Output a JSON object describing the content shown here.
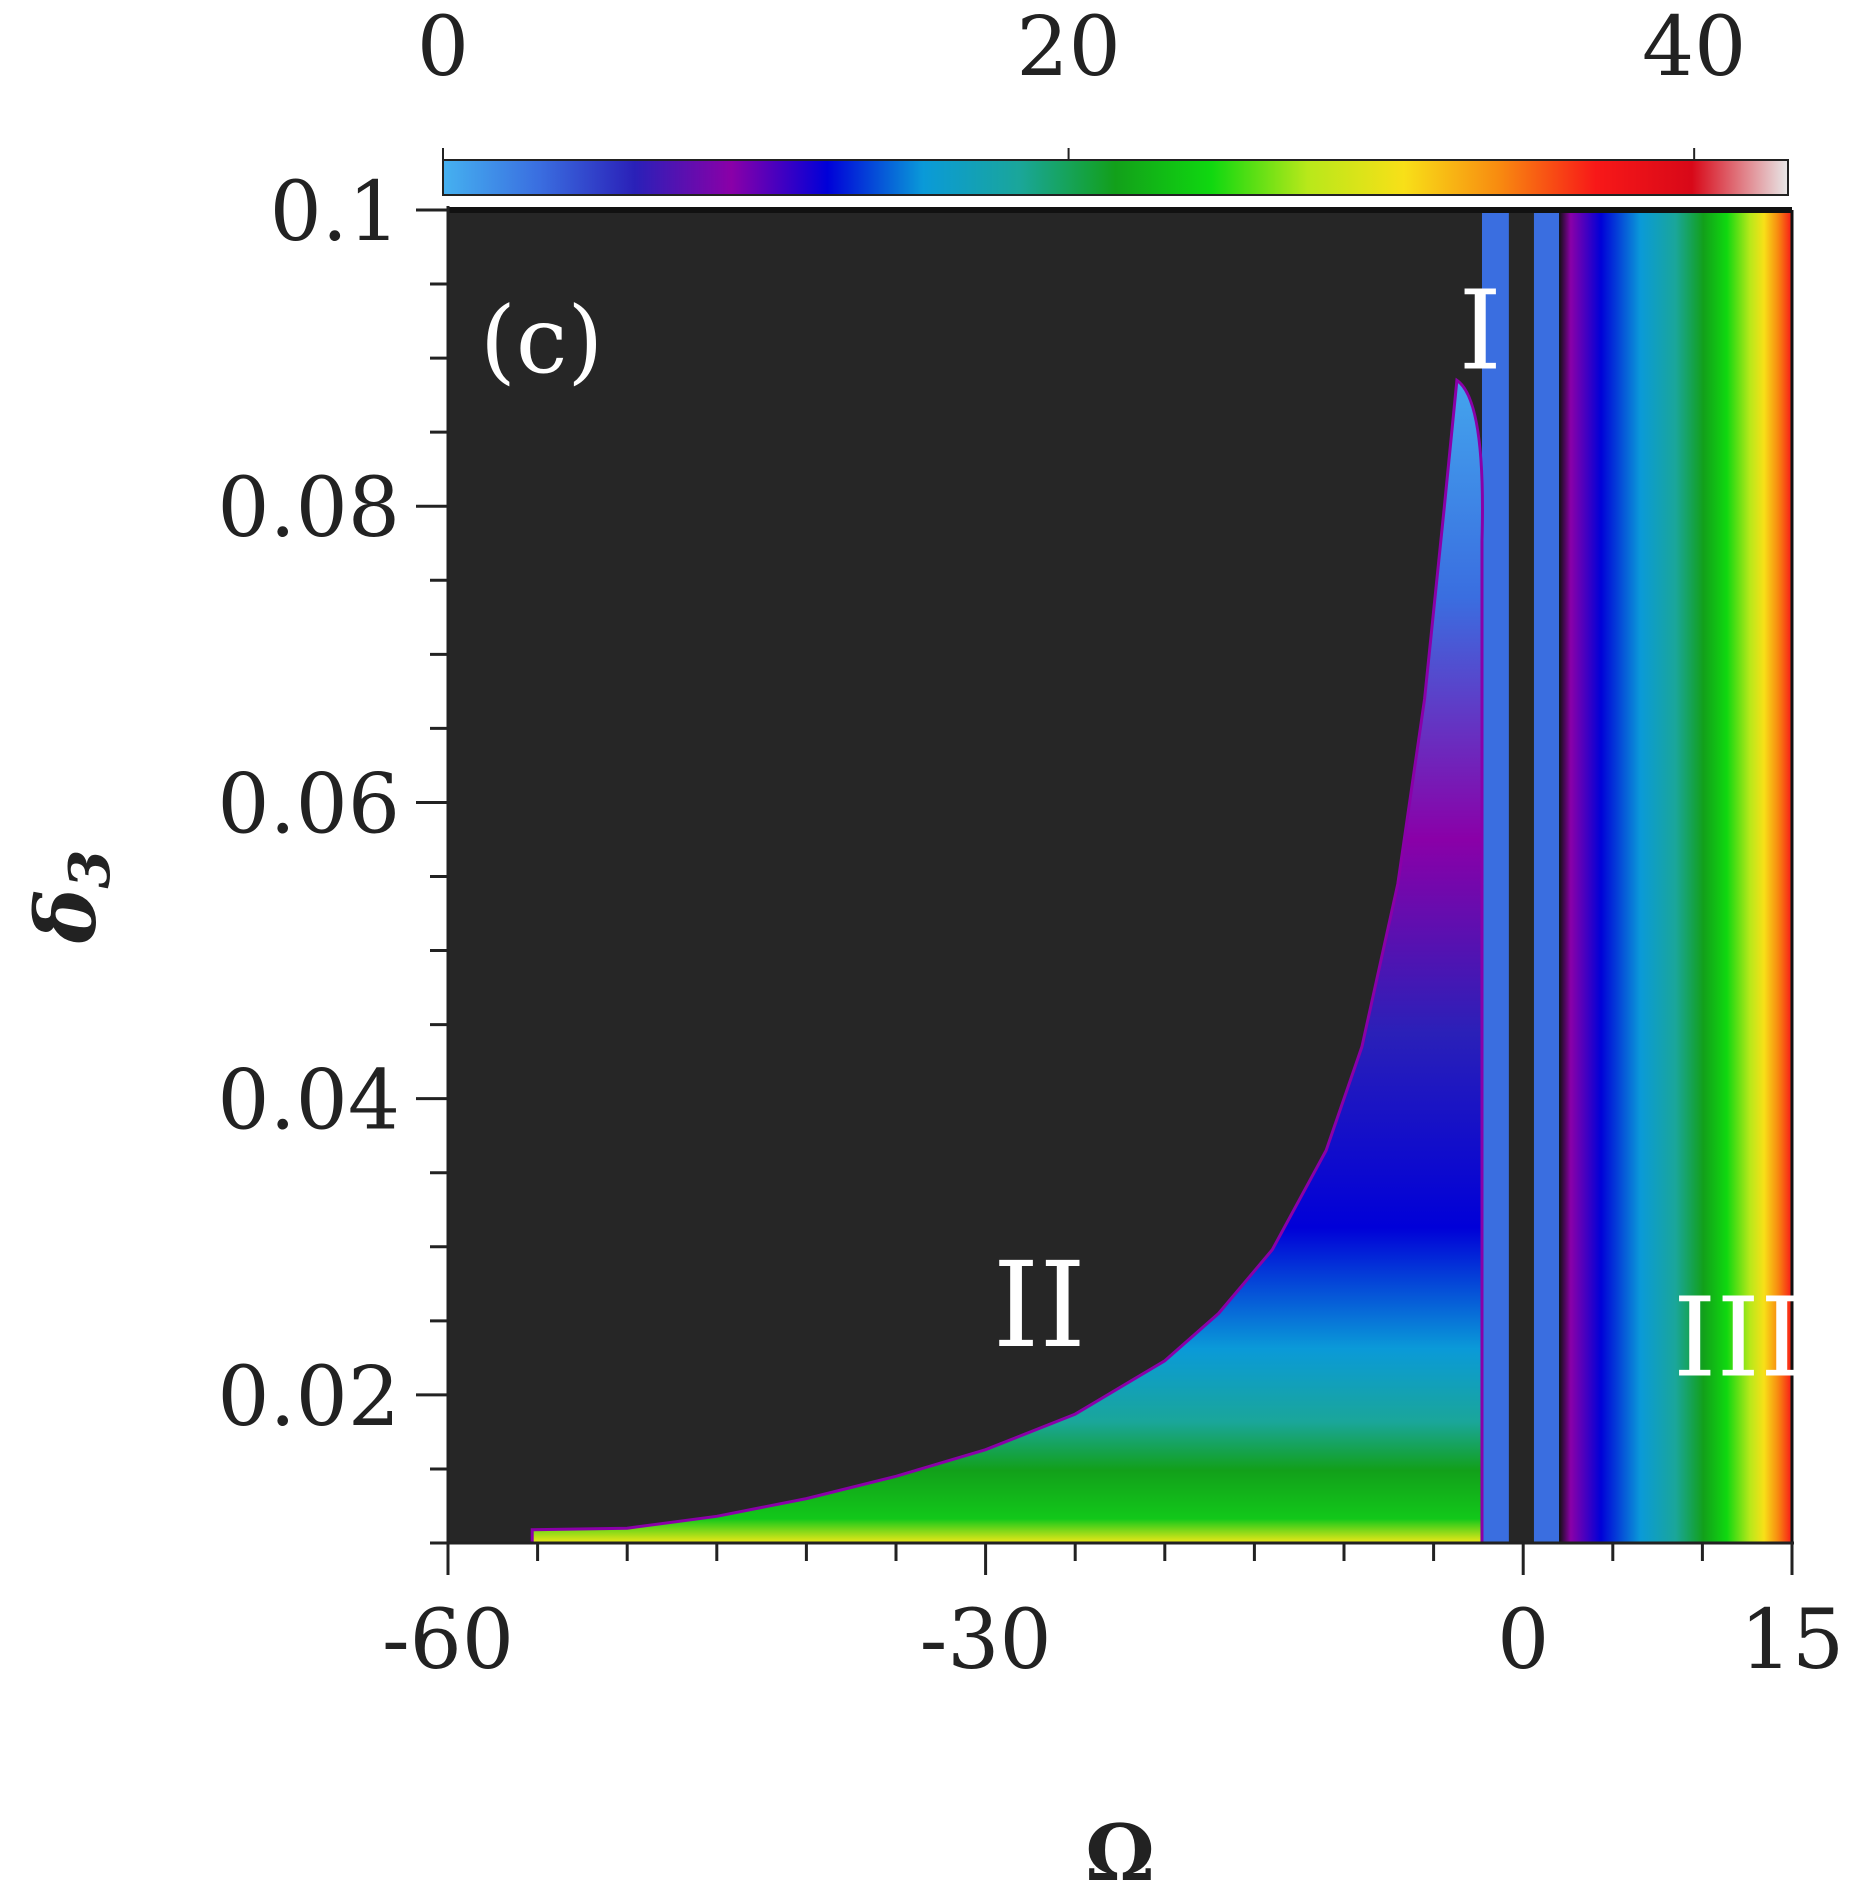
{
  "chart_data": {
    "type": "heatmap",
    "panel_label": "(c)",
    "xlabel": "Ω",
    "ylabel": "δ3",
    "xlim": [
      -60,
      15
    ],
    "ylim": [
      0.01,
      0.1
    ],
    "x_ticks": [
      -60,
      -30,
      0,
      15
    ],
    "x_tick_labels": [
      "-60",
      "-30",
      "0",
      "15"
    ],
    "y_ticks": [
      0.02,
      0.04,
      0.06,
      0.08,
      0.1
    ],
    "y_tick_labels": [
      "0.02",
      "0.04",
      "0.06",
      "0.08",
      "0.1"
    ],
    "colorbar": {
      "range": [
        0,
        43
      ],
      "ticks": [
        0,
        20,
        40
      ],
      "tick_labels": [
        "0",
        "20",
        "40"
      ],
      "colormap": [
        "#45b1f0",
        "#3a6ee0",
        "#2a20b8",
        "#8a00a8",
        "#0000d8",
        "#0a9ad8",
        "#1aa69a",
        "#12a01a",
        "#10d810",
        "#b8e81a",
        "#f8e018",
        "#f88a10",
        "#f81818",
        "#d80818",
        "#e8e8e8"
      ]
    },
    "no_data_color": "#262626",
    "regions": [
      {
        "label": "I",
        "x": -2.4,
        "y": 0.092
      },
      {
        "label": "II",
        "x": -27,
        "y": 0.026
      },
      {
        "label": "III",
        "x": 12,
        "y": 0.024
      }
    ],
    "tongue_boundary": [
      [
        -55.3,
        0.0109
      ],
      [
        -50,
        0.011
      ],
      [
        -45,
        0.0118
      ],
      [
        -40,
        0.013
      ],
      [
        -35,
        0.0145
      ],
      [
        -30,
        0.0163
      ],
      [
        -25,
        0.0187
      ],
      [
        -20,
        0.0223
      ],
      [
        -17,
        0.0255
      ],
      [
        -14,
        0.0298
      ],
      [
        -11,
        0.0365
      ],
      [
        -9,
        0.0435
      ],
      [
        -7,
        0.0545
      ],
      [
        -5.5,
        0.067
      ],
      [
        -4.4,
        0.08
      ],
      [
        -3.7,
        0.0885
      ]
    ],
    "tongue_right_edge": -2.3,
    "vertical_bands": [
      {
        "x": [
          -2.3,
          -0.8
        ],
        "value": 2
      },
      {
        "x": [
          0.6,
          2.0
        ],
        "value": 2
      }
    ]
  }
}
